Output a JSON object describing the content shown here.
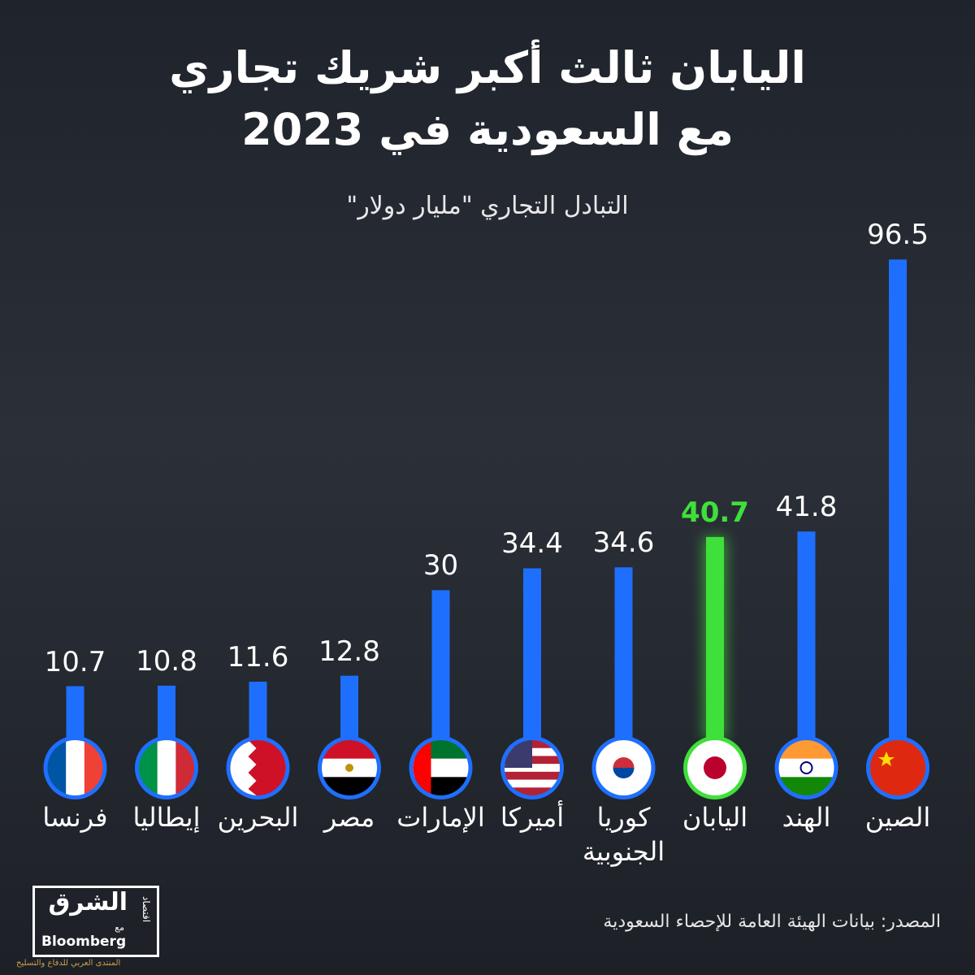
{
  "chart_data": {
    "type": "bar",
    "title": [
      "اليابان ثالث أكبر شريك تجاري",
      "مع السعودية في 2023"
    ],
    "subtitle": "التبادل التجاري \"مليار دولار\"",
    "categories": [
      "الصين",
      "الهند",
      "اليابان",
      "كوريا الجنوبية",
      "أميركا",
      "الإمارات",
      "مصر",
      "البحرين",
      "إيطاليا",
      "فرنسا"
    ],
    "values": [
      96.5,
      41.8,
      40.7,
      34.6,
      34.4,
      30,
      12.8,
      11.6,
      10.8,
      10.7
    ],
    "colors": [
      "#1f6fff",
      "#1f6fff",
      "#3fe03a",
      "#1f6fff",
      "#1f6fff",
      "#1f6fff",
      "#1f6fff",
      "#1f6fff",
      "#1f6fff",
      "#1f6fff"
    ],
    "label_colors": [
      "#ffffff",
      "#ffffff",
      "#3fe03a",
      "#ffffff",
      "#ffffff",
      "#ffffff",
      "#ffffff",
      "#ffffff",
      "#ffffff",
      "#ffffff"
    ],
    "source": "المصدر: بيانات الهيئة العامة للإحصاء السعودية",
    "logo": {
      "name": "الشرق",
      "sub": "اقتصاد",
      "with": "مع",
      "partner": "Bloomberg"
    },
    "watermark": "المنتدى العربي للدفاع والتسليح"
  }
}
